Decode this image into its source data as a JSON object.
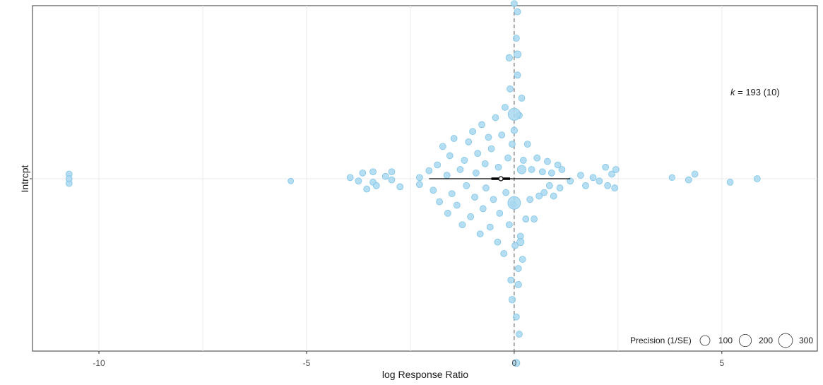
{
  "chart_data": {
    "type": "scatter",
    "subtype": "orchard plot",
    "xlabel": "log Response Ratio",
    "ylabel": "Intrcpt",
    "xlim": [
      -11.6,
      7.3
    ],
    "x_ticks": [
      -10,
      -5,
      0,
      5
    ],
    "x_tick_labels": [
      "-10",
      "-5",
      "0",
      "5"
    ],
    "y_categories": [
      "Intrcpt"
    ],
    "grid": true,
    "reference_line_x": 0,
    "point_color": "#a8d8f0",
    "point_stroke": "#7fc4e6",
    "annotation": {
      "k_label": "k",
      "k_rest": " = 193 (10)"
    },
    "estimate": {
      "mean": -0.32,
      "ci": [
        -0.55,
        -0.1
      ],
      "pi": [
        -2.05,
        1.35
      ]
    },
    "legend": {
      "title": "Precision (1/SE)",
      "position": "bottom-right",
      "entries": [
        "100",
        "200",
        "300"
      ],
      "values": [
        100,
        200,
        300
      ]
    },
    "points": [
      {
        "x": -10.72,
        "y": 0.04,
        "p": 5
      },
      {
        "x": -10.72,
        "y": -0.04,
        "p": 5
      },
      {
        "x": -10.72,
        "y": 0.0,
        "p": 5
      },
      {
        "x": -5.38,
        "y": -0.02,
        "p": 3
      },
      {
        "x": -3.95,
        "y": 0.01,
        "p": 5
      },
      {
        "x": -3.75,
        "y": -0.02,
        "p": 5
      },
      {
        "x": -3.65,
        "y": 0.05,
        "p": 5
      },
      {
        "x": -3.55,
        "y": -0.09,
        "p": 5
      },
      {
        "x": -3.4,
        "y": 0.06,
        "p": 5
      },
      {
        "x": -3.4,
        "y": -0.03,
        "p": 5
      },
      {
        "x": -3.32,
        "y": -0.06,
        "p": 5
      },
      {
        "x": -3.1,
        "y": 0.02,
        "p": 5
      },
      {
        "x": -2.95,
        "y": 0.06,
        "p": 5
      },
      {
        "x": -2.95,
        "y": -0.01,
        "p": 5
      },
      {
        "x": -2.75,
        "y": -0.07,
        "p": 5
      },
      {
        "x": -2.28,
        "y": 0.01,
        "p": 5
      },
      {
        "x": -2.28,
        "y": -0.05,
        "p": 5
      },
      {
        "x": -2.05,
        "y": 0.07,
        "p": 5
      },
      {
        "x": -1.95,
        "y": -0.1,
        "p": 5
      },
      {
        "x": -1.85,
        "y": 0.12,
        "p": 5
      },
      {
        "x": -1.8,
        "y": -0.2,
        "p": 5
      },
      {
        "x": -1.72,
        "y": 0.28,
        "p": 5
      },
      {
        "x": -1.6,
        "y": -0.3,
        "p": 5
      },
      {
        "x": -1.62,
        "y": 0.03,
        "p": 5
      },
      {
        "x": -1.55,
        "y": 0.2,
        "p": 5
      },
      {
        "x": -1.5,
        "y": -0.13,
        "p": 5
      },
      {
        "x": -1.45,
        "y": 0.35,
        "p": 5
      },
      {
        "x": -1.38,
        "y": -0.23,
        "p": 5
      },
      {
        "x": -1.3,
        "y": 0.08,
        "p": 5
      },
      {
        "x": -1.25,
        "y": -0.4,
        "p": 5
      },
      {
        "x": -1.2,
        "y": 0.16,
        "p": 5
      },
      {
        "x": -1.15,
        "y": -0.06,
        "p": 5
      },
      {
        "x": -1.1,
        "y": 0.32,
        "p": 5
      },
      {
        "x": -1.05,
        "y": -0.33,
        "p": 5
      },
      {
        "x": -1.0,
        "y": 0.41,
        "p": 5
      },
      {
        "x": -0.95,
        "y": -0.16,
        "p": 5
      },
      {
        "x": -0.92,
        "y": 0.05,
        "p": 5
      },
      {
        "x": -0.88,
        "y": 0.22,
        "p": 5
      },
      {
        "x": -0.82,
        "y": -0.48,
        "p": 5
      },
      {
        "x": -0.78,
        "y": 0.47,
        "p": 5
      },
      {
        "x": -0.75,
        "y": -0.26,
        "p": 5
      },
      {
        "x": -0.7,
        "y": 0.13,
        "p": 5
      },
      {
        "x": -0.68,
        "y": -0.08,
        "p": 5
      },
      {
        "x": -0.62,
        "y": 0.36,
        "p": 5
      },
      {
        "x": -0.58,
        "y": -0.42,
        "p": 5
      },
      {
        "x": -0.55,
        "y": 0.26,
        "p": 5
      },
      {
        "x": -0.5,
        "y": -0.18,
        "p": 5
      },
      {
        "x": -0.45,
        "y": 0.53,
        "p": 5
      },
      {
        "x": -0.4,
        "y": -0.55,
        "p": 5
      },
      {
        "x": -0.38,
        "y": 0.1,
        "p": 5
      },
      {
        "x": -0.35,
        "y": -0.3,
        "p": 5
      },
      {
        "x": -0.3,
        "y": 0.38,
        "p": 5
      },
      {
        "x": -0.25,
        "y": -0.65,
        "p": 5
      },
      {
        "x": -0.22,
        "y": 0.62,
        "p": 5
      },
      {
        "x": -0.2,
        "y": -0.12,
        "p": 5
      },
      {
        "x": -0.15,
        "y": 0.18,
        "p": 5
      },
      {
        "x": -0.12,
        "y": -0.4,
        "p": 5
      },
      {
        "x": -0.1,
        "y": 0.78,
        "p": 5
      },
      {
        "x": -0.08,
        "y": -0.88,
        "p": 5
      },
      {
        "x": -0.05,
        "y": 0.3,
        "p": 5
      },
      {
        "x": -0.02,
        "y": -0.22,
        "p": 5
      },
      {
        "x": 0.0,
        "y": 0.42,
        "p": 6
      },
      {
        "x": 0.02,
        "y": -0.58,
        "p": 5
      },
      {
        "x": 0.05,
        "y": 1.22,
        "p": 5
      },
      {
        "x": 0.05,
        "y": -1.2,
        "p": 5
      },
      {
        "x": 0.08,
        "y": 0.9,
        "p": 5
      },
      {
        "x": 0.1,
        "y": -0.78,
        "p": 5
      },
      {
        "x": 0.12,
        "y": 0.55,
        "p": 5
      },
      {
        "x": 0.15,
        "y": -0.5,
        "p": 5
      },
      {
        "x": 0.18,
        "y": 0.7,
        "p": 5
      },
      {
        "x": 0.2,
        "y": -0.7,
        "p": 5
      },
      {
        "x": 0.22,
        "y": 0.16,
        "p": 5
      },
      {
        "x": 0.28,
        "y": -0.35,
        "p": 5
      },
      {
        "x": 0.32,
        "y": 0.3,
        "p": 5
      },
      {
        "x": 0.38,
        "y": -0.18,
        "p": 5
      },
      {
        "x": 0.42,
        "y": 0.08,
        "p": 5
      },
      {
        "x": 0.48,
        "y": -0.35,
        "p": 5
      },
      {
        "x": 0.55,
        "y": 0.18,
        "p": 5
      },
      {
        "x": 0.6,
        "y": -0.15,
        "p": 5
      },
      {
        "x": 0.68,
        "y": 0.06,
        "p": 5
      },
      {
        "x": 0.72,
        "y": -0.12,
        "p": 5
      },
      {
        "x": 0.8,
        "y": 0.15,
        "p": 5
      },
      {
        "x": 0.85,
        "y": -0.06,
        "p": 5
      },
      {
        "x": 0.9,
        "y": 0.05,
        "p": 5
      },
      {
        "x": 0.95,
        "y": -0.15,
        "p": 5
      },
      {
        "x": 1.05,
        "y": 0.12,
        "p": 5
      },
      {
        "x": 1.1,
        "y": -0.08,
        "p": 5
      },
      {
        "x": 1.15,
        "y": 0.08,
        "p": 5
      },
      {
        "x": 1.35,
        "y": -0.02,
        "p": 5
      },
      {
        "x": 1.6,
        "y": 0.03,
        "p": 5
      },
      {
        "x": 1.72,
        "y": -0.06,
        "p": 5
      },
      {
        "x": 1.9,
        "y": 0.01,
        "p": 5
      },
      {
        "x": 2.05,
        "y": -0.02,
        "p": 5
      },
      {
        "x": 2.2,
        "y": 0.1,
        "p": 5
      },
      {
        "x": 2.25,
        "y": -0.06,
        "p": 5
      },
      {
        "x": 2.35,
        "y": 0.04,
        "p": 5
      },
      {
        "x": 2.42,
        "y": -0.08,
        "p": 5
      },
      {
        "x": 2.45,
        "y": 0.08,
        "p": 5
      },
      {
        "x": 3.8,
        "y": 0.01,
        "p": 4
      },
      {
        "x": 4.2,
        "y": -0.01,
        "p": 5
      },
      {
        "x": 4.35,
        "y": 0.04,
        "p": 5
      },
      {
        "x": 5.2,
        "y": -0.03,
        "p": 5
      },
      {
        "x": 5.85,
        "y": 0.0,
        "p": 5
      },
      {
        "x": 0.0,
        "y": 0.56,
        "p": 40
      },
      {
        "x": 0.0,
        "y": -0.21,
        "p": 45
      },
      {
        "x": 0.18,
        "y": 0.08,
        "p": 15
      },
      {
        "x": 0.08,
        "y": 1.08,
        "p": 8
      },
      {
        "x": 0.15,
        "y": -0.55,
        "p": 8
      },
      {
        "x": 0.1,
        "y": -0.92,
        "p": 6
      },
      {
        "x": -0.12,
        "y": 1.05,
        "p": 6
      },
      {
        "x": -0.05,
        "y": -1.05,
        "p": 6
      },
      {
        "x": 0.08,
        "y": 1.45,
        "p": 5
      },
      {
        "x": 0.05,
        "y": -1.6,
        "p": 8
      },
      {
        "x": 0.0,
        "y": 1.52,
        "p": 5
      },
      {
        "x": 0.12,
        "y": -1.35,
        "p": 5
      }
    ]
  }
}
